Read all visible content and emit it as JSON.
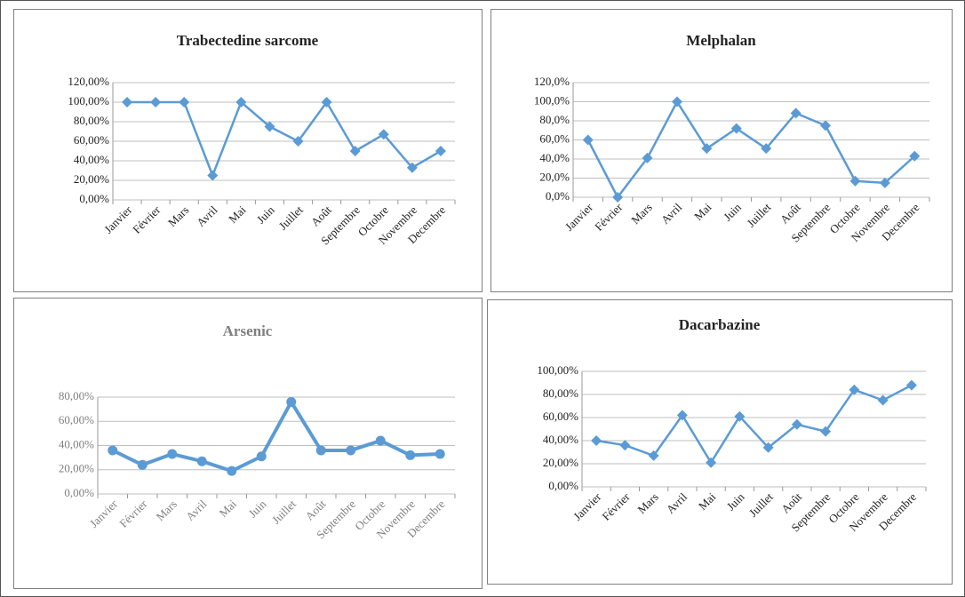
{
  "chart_data": [
    {
      "type": "line",
      "title": "Trabectedine sarcome",
      "marker": "diamond",
      "color": "#5b9bd5",
      "categories": [
        "Janvier",
        "Février",
        "Mars",
        "Avril",
        "Mai",
        "Juin",
        "Juillet",
        "Août",
        "Septembre",
        "Octobre",
        "Novembre",
        "Decembre"
      ],
      "values": [
        100,
        100,
        100,
        25,
        100,
        75,
        60,
        100,
        50,
        67,
        33,
        50
      ],
      "ylim": [
        0,
        120
      ],
      "yticks": [
        {
          "value": 0,
          "label": "0,00%"
        },
        {
          "value": 20,
          "label": "20,00%"
        },
        {
          "value": 40,
          "label": "40,00%"
        },
        {
          "value": 60,
          "label": "60,00%"
        },
        {
          "value": 80,
          "label": "80,00%"
        },
        {
          "value": 100,
          "label": "100,00%"
        },
        {
          "value": 120,
          "label": "120,00%"
        }
      ],
      "grid": true
    },
    {
      "type": "line",
      "title": "Melphalan",
      "marker": "diamond",
      "color": "#5b9bd5",
      "categories": [
        "Janvier",
        "Février",
        "Mars",
        "Avril",
        "Mai",
        "Juin",
        "Juillet",
        "Août",
        "Septembre",
        "Octobre",
        "Novembre",
        "Decembre"
      ],
      "values": [
        60,
        0,
        41,
        100,
        51,
        72,
        51,
        88,
        75,
        17,
        15,
        43
      ],
      "ylim": [
        0,
        120
      ],
      "yticks": [
        {
          "value": 0,
          "label": "0,0%"
        },
        {
          "value": 20,
          "label": "20,0%"
        },
        {
          "value": 40,
          "label": "40,0%"
        },
        {
          "value": 60,
          "label": "60,0%"
        },
        {
          "value": 80,
          "label": "80,0%"
        },
        {
          "value": 100,
          "label": "100,0%"
        },
        {
          "value": 120,
          "label": "120,0%"
        }
      ],
      "grid": true
    },
    {
      "type": "line",
      "title": "Arsenic",
      "marker": "circle",
      "color": "#5b9bd5",
      "categories": [
        "Janvier",
        "Février",
        "Mars",
        "Avril",
        "Mai",
        "Juin",
        "Juillet",
        "Août",
        "Septembre",
        "Octobre",
        "Novembre",
        "Decembre"
      ],
      "values": [
        36,
        24,
        33,
        27,
        19,
        31,
        76,
        36,
        36,
        44,
        32,
        33
      ],
      "ylim": [
        0,
        80
      ],
      "yticks": [
        {
          "value": 0,
          "label": "0,00%"
        },
        {
          "value": 20,
          "label": "20,00%"
        },
        {
          "value": 40,
          "label": "40,00%"
        },
        {
          "value": 60,
          "label": "60,00%"
        },
        {
          "value": 80,
          "label": "80,00%"
        }
      ],
      "grid": true
    },
    {
      "type": "line",
      "title": "Dacarbazine",
      "marker": "diamond",
      "color": "#5b9bd5",
      "categories": [
        "Janvier",
        "Février",
        "Mars",
        "Avril",
        "Mai",
        "Juin",
        "Juillet",
        "Août",
        "Septembre",
        "Octobre",
        "Novembre",
        "Decembre"
      ],
      "values": [
        40,
        36,
        27,
        62,
        21,
        61,
        34,
        54,
        48,
        84,
        75,
        88
      ],
      "ylim": [
        0,
        100
      ],
      "yticks": [
        {
          "value": 0,
          "label": "0,00%"
        },
        {
          "value": 20,
          "label": "20,00%"
        },
        {
          "value": 40,
          "label": "40,00%"
        },
        {
          "value": 60,
          "label": "60,00%"
        },
        {
          "value": 80,
          "label": "80,00%"
        },
        {
          "value": 100,
          "label": "100,00%"
        }
      ],
      "grid": true
    }
  ]
}
